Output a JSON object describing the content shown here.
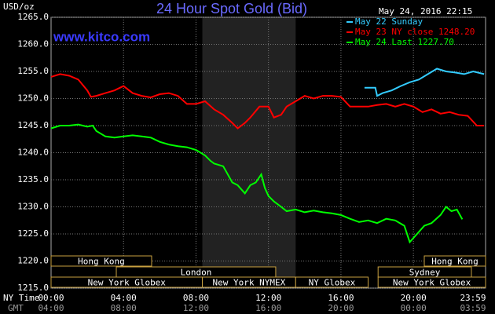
{
  "chart_data": {
    "type": "line",
    "title": "24 Hour Spot Gold (Bid)",
    "watermark": "www.kitco.com",
    "y_unit": "USD/oz",
    "timestamp": "May 24, 2016 22:15",
    "x_label": "NY Time",
    "x2_label": "GMT",
    "xlim": [
      0,
      23.983
    ],
    "ylim": [
      1215,
      1265
    ],
    "grid": true,
    "yticks": [
      {
        "value": 1215,
        "label": "1215.0"
      },
      {
        "value": 1220,
        "label": "1220.0"
      },
      {
        "value": 1225,
        "label": "1225.0"
      },
      {
        "value": 1230,
        "label": "1230.0"
      },
      {
        "value": 1235,
        "label": "1235.0"
      },
      {
        "value": 1240,
        "label": "1240.0"
      },
      {
        "value": 1245,
        "label": "1245.0"
      },
      {
        "value": 1250,
        "label": "1250.0"
      },
      {
        "value": 1255,
        "label": "1255.0"
      },
      {
        "value": 1260,
        "label": "1260.0"
      },
      {
        "value": 1265,
        "label": "1265.0"
      }
    ],
    "xticks": [
      {
        "value": 0,
        "label": "00:00"
      },
      {
        "value": 4,
        "label": "04:00"
      },
      {
        "value": 8,
        "label": "08:00"
      },
      {
        "value": 12,
        "label": "12:00"
      },
      {
        "value": 16,
        "label": "16:00"
      },
      {
        "value": 20,
        "label": "20:00"
      },
      {
        "value": 23.983,
        "label": "23:59"
      }
    ],
    "x2ticks": [
      {
        "value": 0,
        "label": "04:00"
      },
      {
        "value": 4,
        "label": "08:00"
      },
      {
        "value": 8,
        "label": "12:00"
      },
      {
        "value": 12,
        "label": "16:00"
      },
      {
        "value": 16,
        "label": "20:00"
      },
      {
        "value": 20,
        "label": "00:00"
      },
      {
        "value": 23.983,
        "label": "03:59"
      }
    ],
    "shade": {
      "start": 8.35,
      "end": 13.5
    },
    "sessions": [
      [
        {
          "label": "Hong Kong",
          "start": 0,
          "end": 5.55
        },
        {
          "label": "Hong Kong",
          "start": 20.6,
          "end": 23.983
        }
      ],
      [
        {
          "label": "London",
          "start": 3.6,
          "end": 12.4
        },
        {
          "label": "Sydney",
          "start": 18.05,
          "end": 23.2
        }
      ],
      [
        {
          "label": "New York Globex",
          "start": 0,
          "end": 8.35
        },
        {
          "label": "New York NYMEX",
          "start": 8.35,
          "end": 13.5
        },
        {
          "label": "NY Globex",
          "start": 13.5,
          "end": 17.5
        },
        {
          "label": "New York Globex",
          "start": 18.05,
          "end": 23.983
        }
      ]
    ],
    "series": [
      {
        "name": "May 22 Sunday",
        "color": "#33ccff",
        "x": [
          17.3,
          17.9,
          18.0,
          18.3,
          18.8,
          19.3,
          19.8,
          20.3,
          20.8,
          21.3,
          21.8,
          22.3,
          22.8,
          23.3,
          23.9
        ],
        "values": [
          1252.0,
          1252.0,
          1250.5,
          1251.0,
          1251.5,
          1252.3,
          1253.0,
          1253.5,
          1254.5,
          1255.5,
          1255.0,
          1254.8,
          1254.5,
          1255.0,
          1254.5
        ]
      },
      {
        "name": "May 23 NY close 1248.20",
        "color": "#ff0000",
        "x": [
          0,
          0.5,
          1,
          1.5,
          2,
          2.2,
          2.5,
          3,
          3.5,
          4,
          4.5,
          5,
          5.5,
          6,
          6.5,
          7,
          7.5,
          8,
          8.5,
          9,
          9.5,
          10,
          10.3,
          10.7,
          11,
          11.5,
          12,
          12.3,
          12.7,
          13,
          13.5,
          14,
          14.5,
          15,
          15.5,
          16,
          16.5,
          17,
          17.5,
          18,
          18.5,
          19,
          19.5,
          20,
          20.5,
          21,
          21.5,
          22,
          22.5,
          23,
          23.5,
          23.9
        ],
        "values": [
          1254.0,
          1254.5,
          1254.2,
          1253.5,
          1251.5,
          1250.3,
          1250.5,
          1251.0,
          1251.5,
          1252.3,
          1251.0,
          1250.5,
          1250.2,
          1250.8,
          1251.0,
          1250.5,
          1249.0,
          1249.0,
          1249.5,
          1248.0,
          1247.0,
          1245.5,
          1244.5,
          1245.5,
          1246.5,
          1248.5,
          1248.5,
          1246.5,
          1247.0,
          1248.5,
          1249.5,
          1250.5,
          1250.0,
          1250.5,
          1250.5,
          1250.3,
          1248.5,
          1248.5,
          1248.5,
          1248.8,
          1249.0,
          1248.5,
          1249.0,
          1248.5,
          1247.5,
          1248.0,
          1247.2,
          1247.5,
          1247.0,
          1246.8,
          1245.0,
          1245.0
        ]
      },
      {
        "name": "May 24 Last 1227.70",
        "color": "#00ff00",
        "x": [
          0,
          0.5,
          1,
          1.5,
          2,
          2.3,
          2.5,
          3,
          3.5,
          4,
          4.5,
          5,
          5.5,
          6,
          6.5,
          7,
          7.5,
          8,
          8.5,
          8.8,
          9,
          9.5,
          10,
          10.3,
          10.7,
          11,
          11.3,
          11.6,
          11.8,
          12,
          12.3,
          12.7,
          13,
          13.5,
          14,
          14.5,
          15,
          15.5,
          16,
          16.5,
          17,
          17.5,
          18,
          18.5,
          19,
          19.5,
          19.8,
          20.2,
          20.6,
          21,
          21.5,
          21.8,
          22.1,
          22.4,
          22.7
        ],
        "values": [
          1244.5,
          1245.0,
          1245.0,
          1245.2,
          1244.8,
          1245.0,
          1244.0,
          1243.0,
          1242.8,
          1243.0,
          1243.2,
          1243.0,
          1242.8,
          1242.0,
          1241.5,
          1241.2,
          1241.0,
          1240.5,
          1239.5,
          1238.5,
          1238.0,
          1237.5,
          1234.5,
          1234.0,
          1232.5,
          1234.0,
          1234.5,
          1236.0,
          1233.5,
          1232.0,
          1231.0,
          1230.0,
          1229.2,
          1229.5,
          1229.0,
          1229.3,
          1229.0,
          1228.8,
          1228.5,
          1227.8,
          1227.2,
          1227.5,
          1227.0,
          1227.8,
          1227.5,
          1226.5,
          1223.5,
          1225.0,
          1226.5,
          1227.0,
          1228.5,
          1230.0,
          1229.2,
          1229.5,
          1227.7
        ]
      }
    ]
  }
}
